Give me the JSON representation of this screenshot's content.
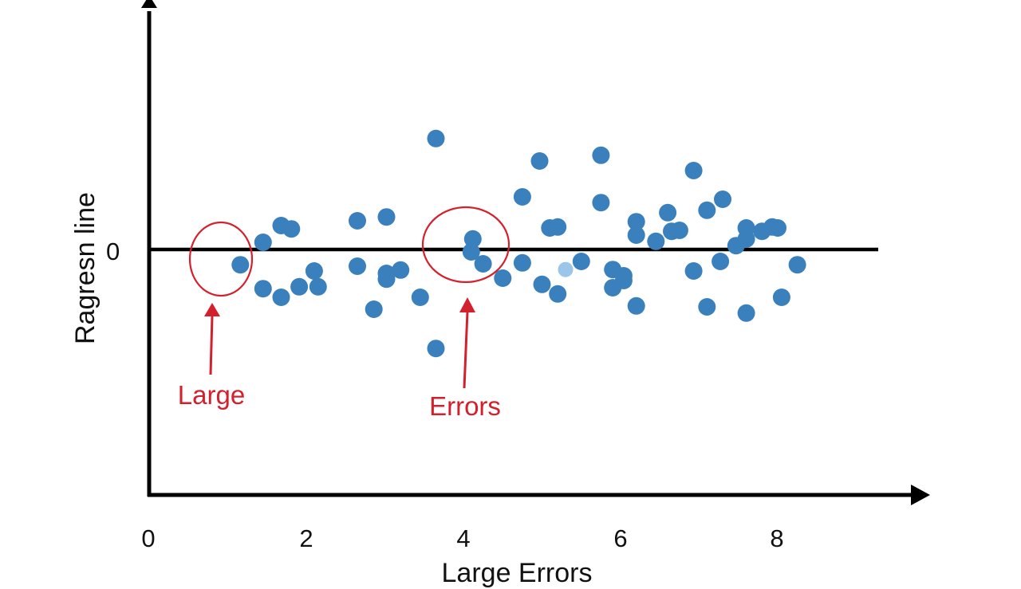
{
  "chart_data": {
    "type": "scatter",
    "title": "",
    "xlabel": "Large Errors",
    "ylabel": "Ragresn line",
    "x_ticks": [
      "0",
      "2",
      "4",
      "6",
      "8"
    ],
    "y_ticks": [
      "0"
    ],
    "xlim": [
      0,
      9.6
    ],
    "ylim": [
      -5.0,
      5.2
    ],
    "grid": false,
    "legend": null,
    "reference_line": {
      "label": "0",
      "y": 0,
      "x_range": [
        0,
        9.2
      ]
    },
    "annotations": [
      {
        "text": "Large",
        "target_x": 0.9,
        "target_y": -0.2,
        "shape": "ellipse"
      },
      {
        "text": "Errors",
        "target_x": 4.0,
        "target_y": 0.15,
        "shape": "ellipse"
      }
    ],
    "series": [
      {
        "name": "residuals",
        "color": "#3a80bd",
        "points": [
          [
            1.16,
            -0.32
          ],
          [
            1.45,
            0.15
          ],
          [
            1.45,
            -0.82
          ],
          [
            1.68,
            0.5
          ],
          [
            1.81,
            0.43
          ],
          [
            1.68,
            -1.0
          ],
          [
            1.91,
            -0.78
          ],
          [
            2.1,
            -0.45
          ],
          [
            2.15,
            -0.78
          ],
          [
            2.65,
            0.6
          ],
          [
            2.65,
            -0.35
          ],
          [
            2.86,
            -1.25
          ],
          [
            3.02,
            0.68
          ],
          [
            3.02,
            -0.5
          ],
          [
            3.02,
            -0.62
          ],
          [
            3.2,
            -0.43
          ],
          [
            3.45,
            -1.0
          ],
          [
            3.65,
            2.32
          ],
          [
            3.65,
            -2.07
          ],
          [
            4.12,
            0.22
          ],
          [
            4.1,
            -0.05
          ],
          [
            4.25,
            -0.3
          ],
          [
            4.5,
            -0.6
          ],
          [
            4.75,
            1.1
          ],
          [
            4.75,
            -0.28
          ],
          [
            4.97,
            1.85
          ],
          [
            5.0,
            -0.73
          ],
          [
            5.1,
            0.45
          ],
          [
            5.2,
            0.47
          ],
          [
            5.2,
            -0.93
          ],
          [
            5.5,
            -0.25
          ],
          [
            5.3,
            -0.42
          ],
          [
            5.75,
            0.98
          ],
          [
            5.75,
            1.97
          ],
          [
            5.9,
            -0.42
          ],
          [
            5.9,
            -0.8
          ],
          [
            6.04,
            -0.55
          ],
          [
            6.04,
            -0.65
          ],
          [
            6.2,
            -1.18
          ],
          [
            6.2,
            0.58
          ],
          [
            6.2,
            0.3
          ],
          [
            6.45,
            0.17
          ],
          [
            6.6,
            0.77
          ],
          [
            6.65,
            0.38
          ],
          [
            6.75,
            0.4
          ],
          [
            6.93,
            1.65
          ],
          [
            6.93,
            -0.45
          ],
          [
            7.1,
            0.82
          ],
          [
            7.1,
            -1.2
          ],
          [
            7.3,
            1.05
          ],
          [
            7.27,
            -0.25
          ],
          [
            7.47,
            0.08
          ],
          [
            7.6,
            0.45
          ],
          [
            7.6,
            0.22
          ],
          [
            7.6,
            -1.33
          ],
          [
            7.8,
            0.38
          ],
          [
            7.93,
            0.47
          ],
          [
            8.0,
            0.45
          ],
          [
            8.05,
            -1.0
          ],
          [
            8.25,
            -0.32
          ]
        ],
        "highlighted_point": {
          "x": 5.3,
          "y": -0.42,
          "color": "#9cc5ea"
        }
      }
    ]
  },
  "axes": {
    "y_title": "Ragresn line",
    "x_title": "Large Errors",
    "zero_label": "0",
    "x_tick_labels": [
      "0",
      "2",
      "4",
      "6",
      "8"
    ]
  },
  "annotations": {
    "left_label": "Large",
    "right_label": "Errors",
    "color": "#d4202c"
  },
  "colors": {
    "point": "#3a80bd",
    "point_light": "#9cc5ea",
    "axis": "#000000",
    "annotation": "#d4202c"
  }
}
